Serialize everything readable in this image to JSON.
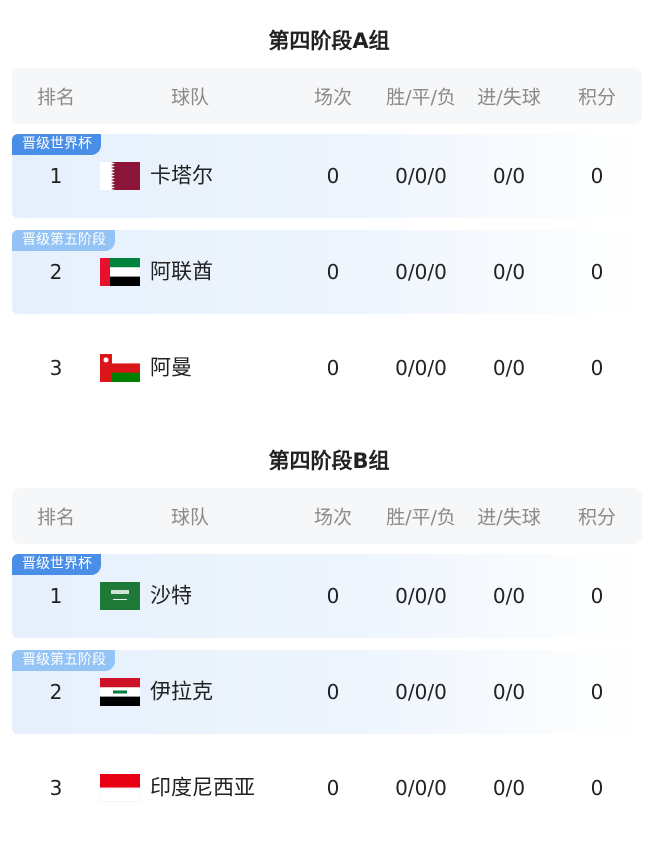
{
  "columns": [
    "排名",
    "球队",
    "场次",
    "胜/平/负",
    "进/失球",
    "积分"
  ],
  "colors": {
    "badge_qualified": "#4a8fe7",
    "badge_next": "#94c3f6"
  },
  "groups": [
    {
      "title": "第四阶段A组",
      "rows": [
        {
          "rank": "1",
          "team": "卡塔尔",
          "flag": "qatar-flag",
          "badge": "晋级世界杯",
          "played": "0",
          "wdl": "0/0/0",
          "goals": "0/0",
          "points": "0"
        },
        {
          "rank": "2",
          "team": "阿联酋",
          "flag": "uae-flag",
          "badge": "晋级第五阶段",
          "played": "0",
          "wdl": "0/0/0",
          "goals": "0/0",
          "points": "0"
        },
        {
          "rank": "3",
          "team": "阿曼",
          "flag": "oman-flag",
          "badge": "",
          "played": "0",
          "wdl": "0/0/0",
          "goals": "0/0",
          "points": "0"
        }
      ]
    },
    {
      "title": "第四阶段B组",
      "rows": [
        {
          "rank": "1",
          "team": "沙特",
          "flag": "saudi-flag",
          "badge": "晋级世界杯",
          "played": "0",
          "wdl": "0/0/0",
          "goals": "0/0",
          "points": "0"
        },
        {
          "rank": "2",
          "team": "伊拉克",
          "flag": "iraq-flag",
          "badge": "晋级第五阶段",
          "played": "0",
          "wdl": "0/0/0",
          "goals": "0/0",
          "points": "0"
        },
        {
          "rank": "3",
          "team": "印度尼西亚",
          "flag": "indonesia-flag",
          "badge": "",
          "played": "0",
          "wdl": "0/0/0",
          "goals": "0/0",
          "points": "0"
        }
      ]
    }
  ]
}
